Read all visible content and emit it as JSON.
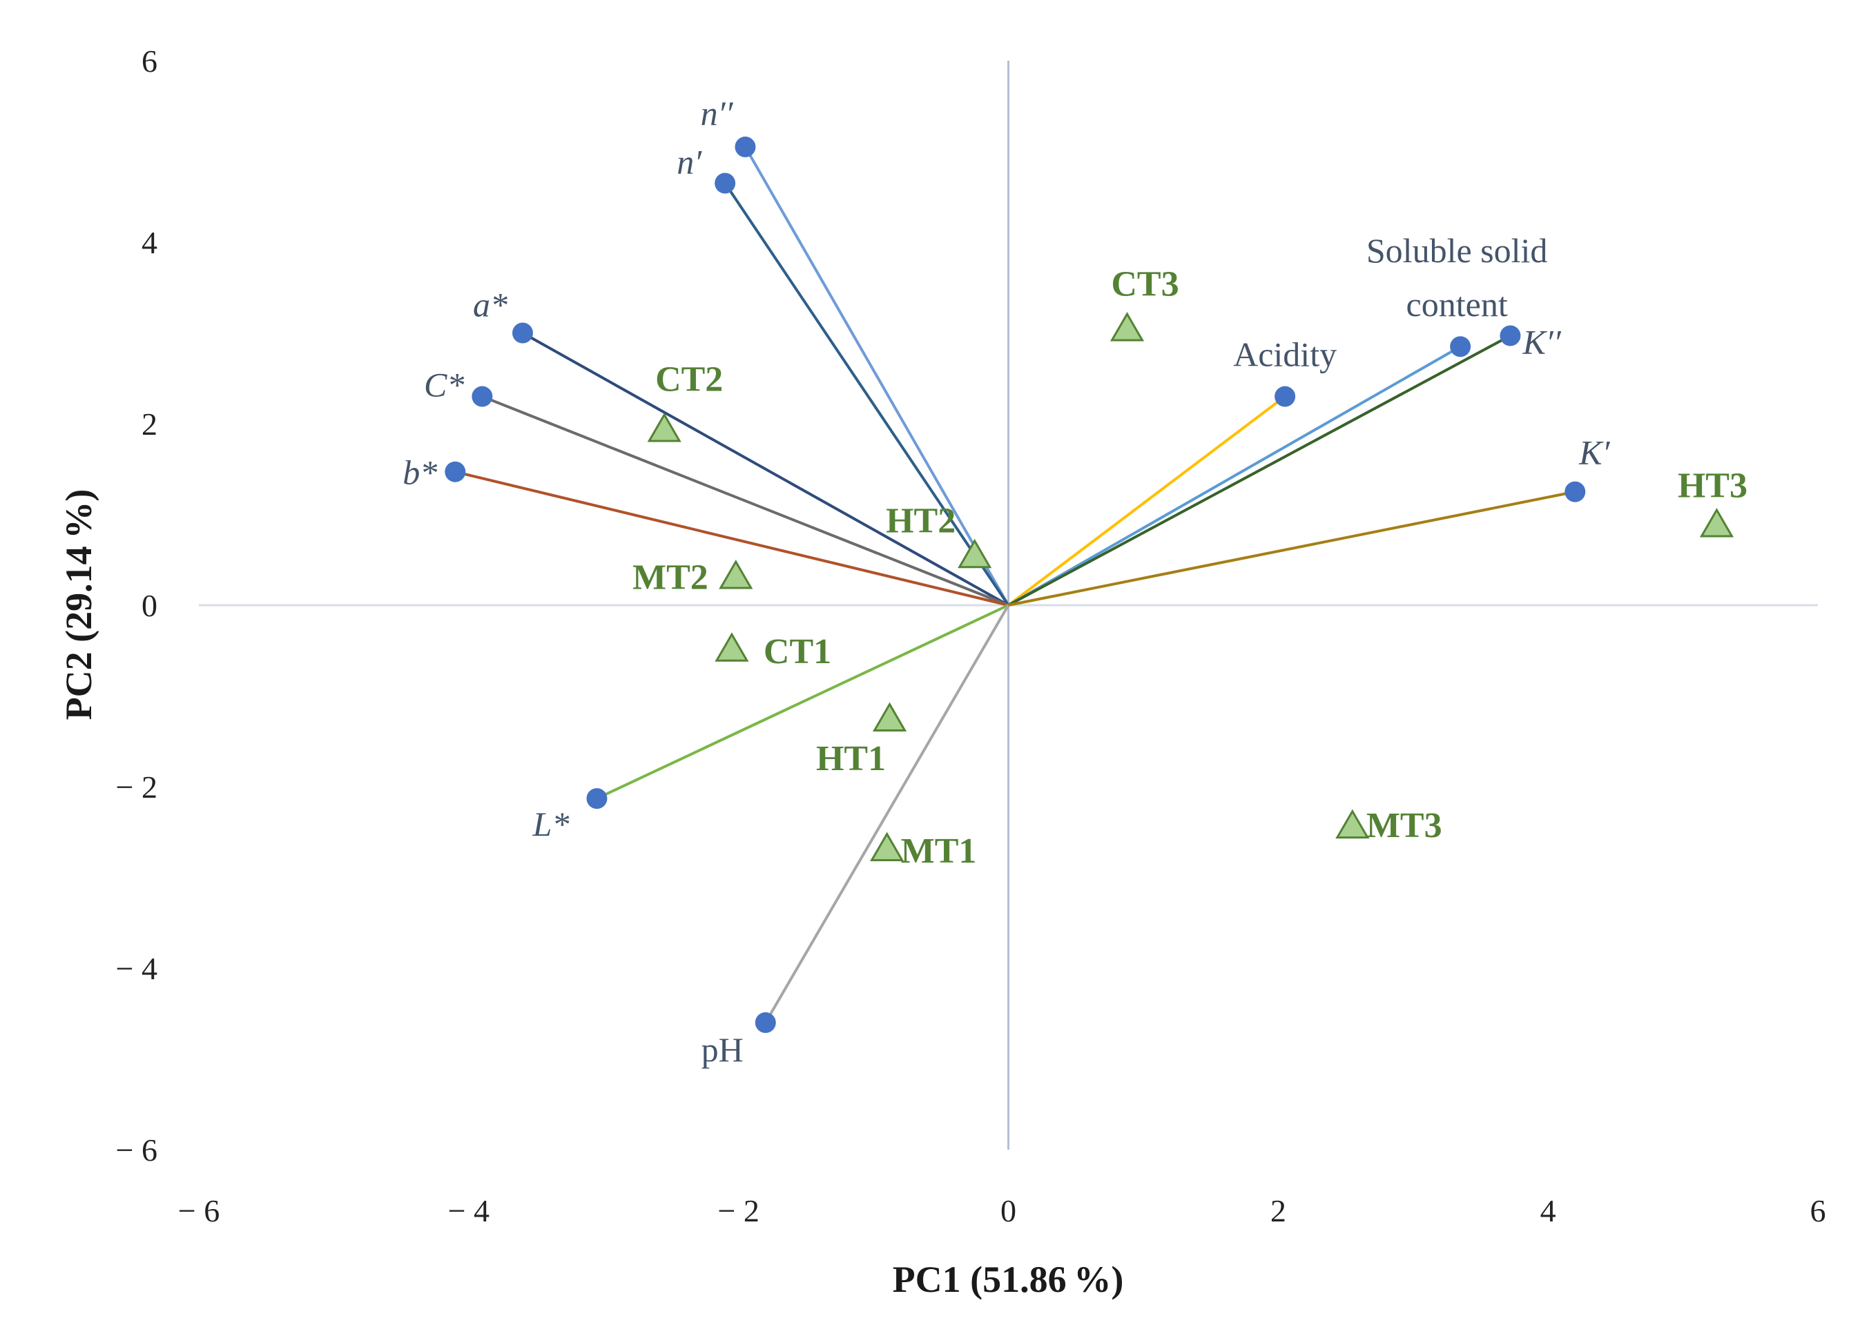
{
  "chart_data": {
    "type": "scatter",
    "subtype": "pca-biplot",
    "xlabel": "PC1 (51.86 %)",
    "ylabel": "PC2 (29.14 %)",
    "xlim": [
      -6,
      6
    ],
    "ylim": [
      -6,
      6
    ],
    "x_ticks": [
      {
        "value": -6,
        "label": "− 6"
      },
      {
        "value": -4,
        "label": "− 4"
      },
      {
        "value": -2,
        "label": "− 2"
      },
      {
        "value": 0,
        "label": "0"
      },
      {
        "value": 2,
        "label": "2"
      },
      {
        "value": 4,
        "label": "4"
      },
      {
        "value": 6,
        "label": "6"
      }
    ],
    "y_ticks": [
      {
        "value": 6,
        "label": "6"
      },
      {
        "value": 4,
        "label": "4"
      },
      {
        "value": 2,
        "label": "2"
      },
      {
        "value": 0,
        "label": "0"
      },
      {
        "value": -2,
        "label": "− 2"
      },
      {
        "value": -4,
        "label": "− 4"
      },
      {
        "value": -6,
        "label": "− 6"
      }
    ],
    "axis_color": "#b4c0d6",
    "grid": false,
    "variables": [
      {
        "id": "n2",
        "label": "n′′",
        "x": -1.95,
        "y": 5.05,
        "color": "#6f9bd8",
        "italic": true
      },
      {
        "id": "n1",
        "label": "n′",
        "x": -2.1,
        "y": 4.65,
        "color": "#2e5f8a",
        "italic": true
      },
      {
        "id": "a",
        "label": "a*",
        "x": -3.6,
        "y": 3.0,
        "color": "#2f4b7c",
        "italic": true
      },
      {
        "id": "c",
        "label": "C*",
        "x": -3.9,
        "y": 2.3,
        "color": "#6b6b6b",
        "italic": true
      },
      {
        "id": "b",
        "label": "b*",
        "x": -4.1,
        "y": 1.47,
        "color": "#b0522a",
        "italic": true
      },
      {
        "id": "l",
        "label": "L*",
        "x": -3.05,
        "y": -2.13,
        "color": "#7ab648",
        "italic": true
      },
      {
        "id": "ph",
        "label": "pH",
        "x": -1.8,
        "y": -4.6,
        "color": "#a6a6a6",
        "italic": false
      },
      {
        "id": "acidity",
        "label": "Acidity",
        "x": 2.05,
        "y": 2.3,
        "color": "#ffc000",
        "italic": false
      },
      {
        "id": "ssc",
        "label": [
          "Soluble solid",
          "content"
        ],
        "x": 3.35,
        "y": 2.85,
        "color": "#5b9bd5",
        "italic": false
      },
      {
        "id": "k2",
        "label": "K′′",
        "x": 3.72,
        "y": 2.97,
        "color": "#38622a",
        "italic": true
      },
      {
        "id": "k1",
        "label": "K′",
        "x": 4.2,
        "y": 1.25,
        "color": "#a57f16",
        "italic": true
      }
    ],
    "observations": [
      {
        "label": "CT1",
        "x": -2.05,
        "y": -0.5
      },
      {
        "label": "CT2",
        "x": -2.55,
        "y": 1.92
      },
      {
        "label": "CT3",
        "x": 0.88,
        "y": 3.03
      },
      {
        "label": "HT1",
        "x": -0.88,
        "y": -1.27
      },
      {
        "label": "HT2",
        "x": -0.25,
        "y": 0.53
      },
      {
        "label": "HT3",
        "x": 5.25,
        "y": 0.87
      },
      {
        "label": "MT1",
        "x": -0.9,
        "y": -2.7
      },
      {
        "label": "MT2",
        "x": -2.02,
        "y": 0.3
      },
      {
        "label": "MT3",
        "x": 2.55,
        "y": -2.45
      }
    ],
    "point_color": "#4472c4",
    "triangle_fill": "#a9d18e",
    "triangle_stroke": "#548235",
    "observation_label_color": "#548235",
    "variable_label_color": "#44546a"
  }
}
